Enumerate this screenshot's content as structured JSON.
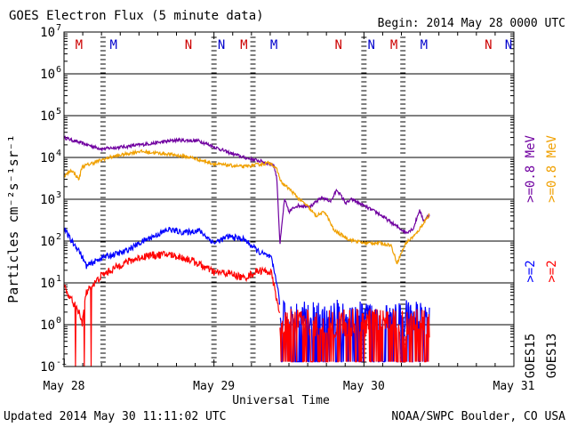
{
  "chart_data": {
    "type": "line",
    "title": "GOES Electron Flux (5 minute data)",
    "begin_label": "Begin: 2014 May 28 0000 UTC",
    "xlabel": "Universal Time",
    "ylabel": "Particles cm⁻²s⁻¹sr⁻¹",
    "x_tick_labels": [
      "May 28",
      "May 29",
      "May 30",
      "May 31"
    ],
    "x_range_days": [
      0,
      3
    ],
    "y_scale": "log",
    "ylim": [
      0.1,
      10000000
    ],
    "y_tick_labels": [
      {
        "base": "10",
        "exp": "7"
      },
      {
        "base": "10",
        "exp": "6"
      },
      {
        "base": "10",
        "exp": "5"
      },
      {
        "base": "10",
        "exp": "4"
      },
      {
        "base": "10",
        "exp": "3"
      },
      {
        "base": "10",
        "exp": "2"
      },
      {
        "base": "10",
        "exp": "1"
      },
      {
        "base": "10",
        "exp": "0"
      },
      {
        "base": "10",
        "exp": "-1"
      }
    ],
    "alert_threshold": 1000,
    "grid": true,
    "footer_left": "Updated 2014 May 30 11:11:02 UTC",
    "footer_right": "NOAA/SWPC Boulder, CO USA",
    "right_labels": [
      {
        "text": ">=0.8 MeV",
        "color": "#f0a000",
        "column": "outer"
      },
      {
        "text": ">=2",
        "color": "#ff0000",
        "column": "outer"
      },
      {
        "text": "GOES13",
        "color": "#000000",
        "column": "outer"
      },
      {
        "text": ">=0.8 MeV",
        "color": "#7000a0",
        "column": "inner"
      },
      {
        "text": ">=2",
        "color": "#0000ff",
        "column": "inner"
      },
      {
        "text": "GOES15",
        "color": "#000000",
        "column": "inner"
      }
    ],
    "markers": [
      {
        "label": "M",
        "day": 0.1,
        "color": "#cc0000"
      },
      {
        "label": "M",
        "day": 0.33,
        "color": "#0000cc"
      },
      {
        "label": "N",
        "day": 0.83,
        "color": "#cc0000"
      },
      {
        "label": "N",
        "day": 1.05,
        "color": "#0000cc"
      },
      {
        "label": "M",
        "day": 1.2,
        "color": "#cc0000"
      },
      {
        "label": "M",
        "day": 1.4,
        "color": "#0000cc"
      },
      {
        "label": "N",
        "day": 1.83,
        "color": "#cc0000"
      },
      {
        "label": "N",
        "day": 2.05,
        "color": "#0000cc"
      },
      {
        "label": "M",
        "day": 2.2,
        "color": "#cc0000"
      },
      {
        "label": "M",
        "day": 2.4,
        "color": "#0000cc"
      },
      {
        "label": "N",
        "day": 2.83,
        "color": "#cc0000"
      },
      {
        "label": "N",
        "day": 3.05,
        "color": "#0000cc"
      }
    ],
    "dashed_verticals_days": [
      0.26,
      1.26,
      2.26
    ],
    "series": [
      {
        "color": "#7000a0",
        "noise": 0.04,
        "points": [
          [
            0.0,
            30000
          ],
          [
            0.1,
            23000
          ],
          [
            0.25,
            16000
          ],
          [
            0.4,
            18000
          ],
          [
            0.6,
            22000
          ],
          [
            0.75,
            26000
          ],
          [
            0.9,
            25000
          ],
          [
            1.0,
            18000
          ],
          [
            1.1,
            13000
          ],
          [
            1.2,
            10000
          ],
          [
            1.32,
            8000
          ],
          [
            1.4,
            6500
          ],
          [
            1.42,
            3000
          ],
          [
            1.44,
            80
          ],
          [
            1.47,
            1000
          ],
          [
            1.5,
            500
          ],
          [
            1.55,
            700
          ],
          [
            1.65,
            700
          ],
          [
            1.72,
            1100
          ],
          [
            1.78,
            900
          ],
          [
            1.82,
            1700
          ],
          [
            1.88,
            800
          ],
          [
            1.92,
            1000
          ],
          [
            2.0,
            700
          ],
          [
            2.1,
            450
          ],
          [
            2.2,
            250
          ],
          [
            2.28,
            160
          ],
          [
            2.33,
            200
          ],
          [
            2.37,
            550
          ],
          [
            2.4,
            300
          ],
          [
            2.44,
            450
          ]
        ]
      },
      {
        "color": "#f0a000",
        "noise": 0.04,
        "points": [
          [
            0.0,
            3500
          ],
          [
            0.05,
            5000
          ],
          [
            0.1,
            3000
          ],
          [
            0.12,
            6000
          ],
          [
            0.3,
            10000
          ],
          [
            0.5,
            14000
          ],
          [
            0.7,
            12000
          ],
          [
            0.85,
            10000
          ],
          [
            1.0,
            7000
          ],
          [
            1.2,
            6000
          ],
          [
            1.38,
            7500
          ],
          [
            1.42,
            5000
          ],
          [
            1.45,
            2500
          ],
          [
            1.5,
            1800
          ],
          [
            1.57,
            1000
          ],
          [
            1.62,
            700
          ],
          [
            1.68,
            400
          ],
          [
            1.74,
            500
          ],
          [
            1.8,
            180
          ],
          [
            1.9,
            110
          ],
          [
            2.0,
            90
          ],
          [
            2.1,
            90
          ],
          [
            2.18,
            80
          ],
          [
            2.22,
            30
          ],
          [
            2.28,
            90
          ],
          [
            2.35,
            150
          ],
          [
            2.4,
            280
          ],
          [
            2.44,
            450
          ]
        ]
      },
      {
        "color": "#0000ff",
        "noise": 0.07,
        "points": [
          [
            0.0,
            200
          ],
          [
            0.05,
            100
          ],
          [
            0.1,
            60
          ],
          [
            0.15,
            25
          ],
          [
            0.25,
            40
          ],
          [
            0.4,
            55
          ],
          [
            0.55,
            110
          ],
          [
            0.7,
            190
          ],
          [
            0.8,
            160
          ],
          [
            0.9,
            180
          ],
          [
            1.0,
            90
          ],
          [
            1.1,
            130
          ],
          [
            1.2,
            110
          ],
          [
            1.3,
            55
          ],
          [
            1.38,
            40
          ],
          [
            1.42,
            10
          ],
          [
            1.44,
            3
          ]
        ]
      },
      {
        "color": "#ff0000",
        "noise": 0.09,
        "points": [
          [
            0.0,
            8
          ],
          [
            0.05,
            4
          ],
          [
            0.1,
            2
          ],
          [
            0.12,
            1
          ],
          [
            0.15,
            6
          ],
          [
            0.25,
            15
          ],
          [
            0.4,
            30
          ],
          [
            0.55,
            45
          ],
          [
            0.7,
            48
          ],
          [
            0.85,
            35
          ],
          [
            1.0,
            18
          ],
          [
            1.1,
            17
          ],
          [
            1.2,
            13
          ],
          [
            1.3,
            20
          ],
          [
            1.38,
            18
          ],
          [
            1.41,
            6
          ],
          [
            1.44,
            1.5
          ]
        ]
      }
    ],
    "noisy_series": [
      {
        "color": "#0000ff",
        "start_day": 1.44,
        "end_day": 2.44,
        "low": 0.13,
        "high": 4
      },
      {
        "color": "#ff0000",
        "start_day": 1.44,
        "end_day": 2.44,
        "low": 0.13,
        "high": 2.5
      }
    ]
  }
}
